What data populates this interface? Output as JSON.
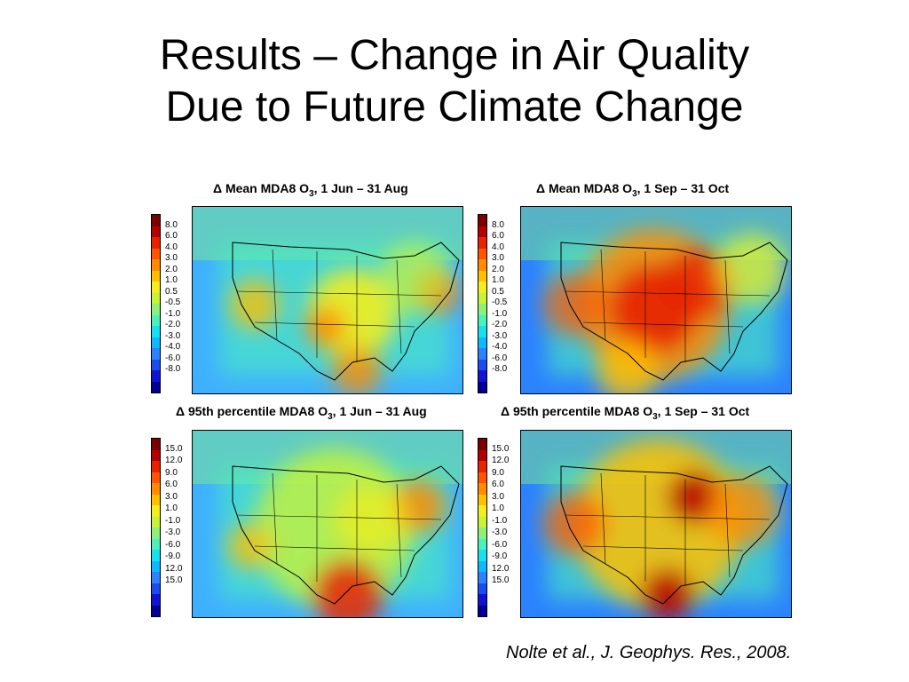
{
  "slide": {
    "title_line1": "Results – Change in Air Quality",
    "title_line2": "Due to Future Climate Change",
    "citation": "Nolte et al., J. Geophys. Res., 2008."
  },
  "colors": {
    "scale": [
      "#7a0000",
      "#b40000",
      "#e62200",
      "#ff5500",
      "#ff8c00",
      "#ffc000",
      "#f2ee20",
      "#c7f23a",
      "#8cf07a",
      "#4cf0bc",
      "#18e0f0",
      "#10b8ff",
      "#2c82ff",
      "#1c4cf0",
      "#1014d0",
      "#000090"
    ]
  },
  "panels": [
    {
      "title_pre": "Δ Mean MDA8 O",
      "title_sub": "3",
      "title_post": ", 1 Jun – 31 Aug",
      "colorbar_labels": [
        "8.0",
        "6.0",
        "4.0",
        "3.0",
        "2.0",
        "1.0",
        "0.5",
        "-0.5",
        "-1.0",
        "-2.0",
        "-3.0",
        "-4.0",
        "-6.0",
        "-8.0"
      ]
    },
    {
      "title_pre": "Δ Mean MDA8 O",
      "title_sub": "3",
      "title_post": ", 1 Sep – 31 Oct",
      "colorbar_labels": [
        "8.0",
        "6.0",
        "4.0",
        "3.0",
        "2.0",
        "1.0",
        "0.5",
        "-0.5",
        "-1.0",
        "-2.0",
        "-3.0",
        "-4.0",
        "-6.0",
        "-8.0"
      ]
    },
    {
      "title_pre": "Δ 95th percentile MDA8 O",
      "title_sub": "3",
      "title_post": ", 1 Jun – 31 Aug",
      "colorbar_labels": [
        "15.0",
        "12.0",
        "9.0",
        "6.0",
        "3.0",
        "1.0",
        "-1.0",
        "-3.0",
        "-6.0",
        "-9.0",
        "12.0",
        "15.0"
      ]
    },
    {
      "title_pre": "Δ 95th percentile MDA8 O",
      "title_sub": "3",
      "title_post": ", 1 Sep – 31 Oct",
      "colorbar_labels": [
        "15.0",
        "12.0",
        "9.0",
        "6.0",
        "3.0",
        "1.0",
        "-1.0",
        "-3.0",
        "-6.0",
        "-9.0",
        "12.0",
        "15.0"
      ]
    }
  ]
}
